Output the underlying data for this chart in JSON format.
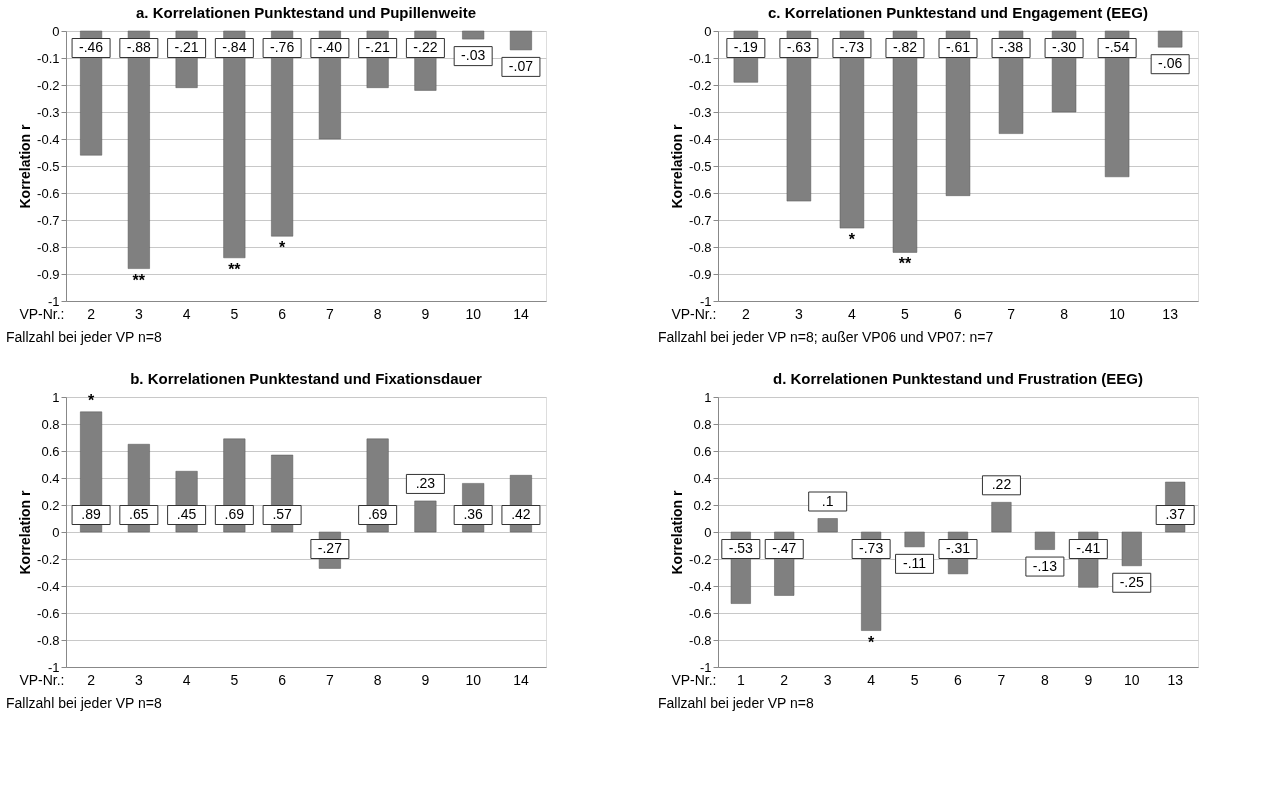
{
  "chart_data": [
    {
      "type": "bar",
      "title": "a. Korrelationen Punktestand und Pupillenweite",
      "xlabel": "VP-Nr.:",
      "ylabel": "Korrelation r",
      "categories": [
        "2",
        "3",
        "4",
        "5",
        "6",
        "7",
        "8",
        "9",
        "10",
        "14"
      ],
      "values": [
        -0.46,
        -0.88,
        -0.21,
        -0.84,
        -0.76,
        -0.4,
        -0.21,
        -0.22,
        -0.03,
        -0.07
      ],
      "value_labels": [
        "-.46",
        "-.88",
        "-.21",
        "-.84",
        "-.76",
        "-.40",
        "-.21",
        "-.22",
        "-.03",
        "-.07"
      ],
      "color": "#808080",
      "ylim": [
        -1,
        0
      ],
      "yticks": [
        -1,
        -0.9,
        -0.8,
        -0.7,
        -0.6,
        -0.5,
        -0.4,
        -0.3,
        -0.2,
        -0.1,
        0
      ],
      "grid": "y",
      "annotations": [
        {
          "text": "**",
          "x": "3",
          "y": -0.88
        },
        {
          "text": "**",
          "x": "5",
          "y": -0.84
        },
        {
          "text": "*",
          "x": "6",
          "y": -0.76
        },
        "Fallzahl bei jeder VP n=8"
      ]
    },
    {
      "type": "bar",
      "title": "c. Korrelationen Punktestand und Engagement (EEG)",
      "xlabel": "VP-Nr.:",
      "ylabel": "Korrelation r",
      "categories": [
        "2",
        "3",
        "4",
        "5",
        "6",
        "7",
        "8",
        "10",
        "13"
      ],
      "values": [
        -0.19,
        -0.63,
        -0.73,
        -0.82,
        -0.61,
        -0.38,
        -0.3,
        -0.54,
        -0.06
      ],
      "value_labels": [
        "-.19",
        "-.63",
        "-.73",
        "-.82",
        "-.61",
        "-.38",
        "-.30",
        "-.54",
        "-.06"
      ],
      "color": "#808080",
      "ylim": [
        -1,
        0
      ],
      "yticks": [
        -1,
        -0.9,
        -0.8,
        -0.7,
        -0.6,
        -0.5,
        -0.4,
        -0.3,
        -0.2,
        -0.1,
        0
      ],
      "grid": "y",
      "annotations": [
        {
          "text": "*",
          "x": "4",
          "y": -0.73
        },
        {
          "text": "**",
          "x": "5",
          "y": -0.82
        },
        "Fallzahl bei jeder VP n=8; außer VP06 und VP07: n=7"
      ]
    },
    {
      "type": "bar",
      "title": "b. Korrelationen Punktestand und Fixationsdauer",
      "xlabel": "VP-Nr.:",
      "ylabel": "Korrelation r",
      "categories": [
        "2",
        "3",
        "4",
        "5",
        "6",
        "7",
        "8",
        "9",
        "10",
        "14"
      ],
      "values": [
        0.89,
        0.65,
        0.45,
        0.69,
        0.57,
        -0.27,
        0.69,
        0.23,
        0.36,
        0.42
      ],
      "value_labels": [
        ".89",
        ".65",
        ".45",
        ".69",
        ".57",
        "-.27",
        ".69",
        ".23",
        ".36",
        ".42"
      ],
      "color": "#808080",
      "ylim": [
        -1,
        1
      ],
      "yticks": [
        -1,
        -0.8,
        -0.6,
        -0.4,
        -0.2,
        0,
        0.2,
        0.4,
        0.6,
        0.8,
        1
      ],
      "grid": "y",
      "annotations": [
        {
          "text": "*",
          "x": "2",
          "y": 0.89
        },
        "Fallzahl bei jeder VP n=8"
      ]
    },
    {
      "type": "bar",
      "title": "d. Korrelationen Punktestand und Frustration (EEG)",
      "xlabel": "VP-Nr.:",
      "ylabel": "Korrelation r",
      "categories": [
        "1",
        "2",
        "3",
        "4",
        "5",
        "6",
        "7",
        "8",
        "9",
        "10",
        "13"
      ],
      "values": [
        -0.53,
        -0.47,
        0.1,
        -0.73,
        -0.11,
        -0.31,
        0.22,
        -0.13,
        -0.41,
        -0.25,
        0.37
      ],
      "value_labels": [
        "-.53",
        "-.47",
        ".1",
        "-.73",
        "-.11",
        "-.31",
        ".22",
        "-.13",
        "-.41",
        "-.25",
        ".37"
      ],
      "color": "#808080",
      "ylim": [
        -1,
        1
      ],
      "yticks": [
        -1,
        -0.8,
        -0.6,
        -0.4,
        -0.2,
        0,
        0.2,
        0.4,
        0.6,
        0.8,
        1
      ],
      "grid": "y",
      "annotations": [
        {
          "text": "*",
          "x": "4",
          "y": -0.73
        },
        "Fallzahl bei jeder VP n=8"
      ]
    }
  ]
}
